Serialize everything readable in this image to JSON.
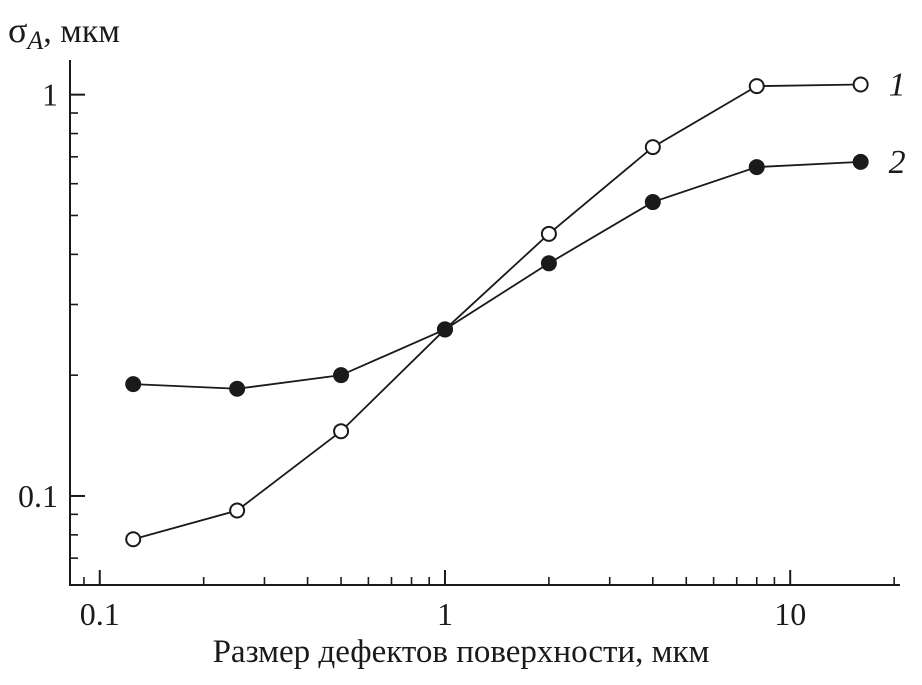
{
  "chart_data": {
    "type": "line",
    "x_scale": "log",
    "y_scale": "log",
    "title": "",
    "xlabel": "Размер дефектов поверхности, мкм",
    "ylabel": "σA, мкм",
    "ylabel_parts": {
      "symbol": "σ",
      "subscript": "A",
      "suffix": ", мкм"
    },
    "x": [
      0.125,
      0.25,
      0.5,
      1,
      2,
      4,
      8,
      16
    ],
    "series": [
      {
        "name": "1",
        "marker": "open-circle",
        "values": [
          0.078,
          0.092,
          0.145,
          0.26,
          0.45,
          0.74,
          1.05,
          1.06
        ]
      },
      {
        "name": "2",
        "marker": "filled-circle",
        "values": [
          0.19,
          0.185,
          0.2,
          0.26,
          0.38,
          0.54,
          0.66,
          0.68
        ]
      }
    ],
    "xlim": [
      0.082,
      20.8
    ],
    "ylim": [
      0.06,
      1.22
    ],
    "x_ticks": [
      0.1,
      1,
      10
    ],
    "x_tick_labels": [
      "0.1",
      "1",
      "10"
    ],
    "y_ticks": [
      0.1,
      1
    ],
    "y_tick_labels": [
      "0.1",
      "1"
    ],
    "grid": false,
    "legend": "curve-end-labels",
    "colors": {
      "line": "#1a1a1a",
      "background": "#ffffff"
    }
  }
}
